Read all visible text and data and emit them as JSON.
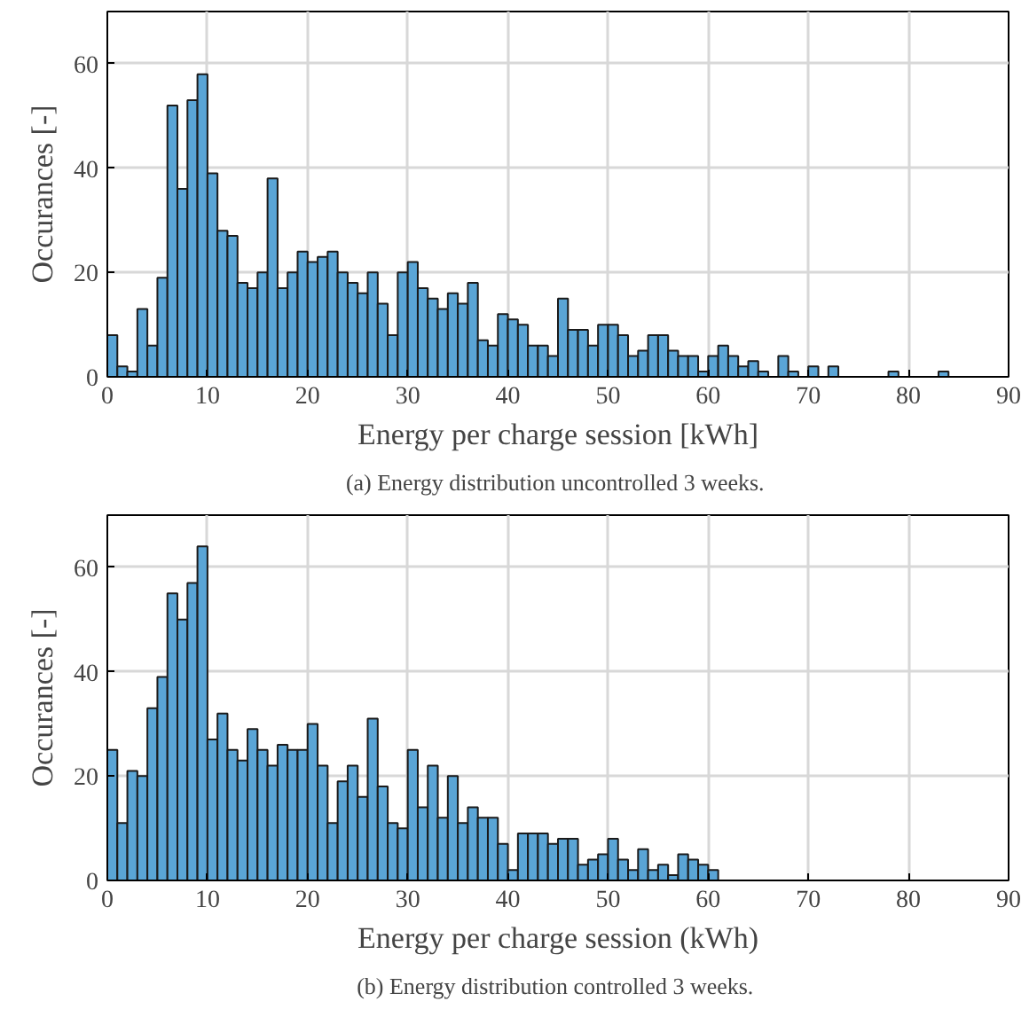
{
  "chart_data": [
    {
      "type": "histogram",
      "title": "(a)  Energy distribution uncontrolled 3 weeks.",
      "xlabel": "Energy per charge session [kWh]",
      "ylabel": "Occurances [-]",
      "color": "#5aa5d6",
      "bins": [
        0,
        1,
        2,
        3,
        4,
        5,
        6,
        7,
        8,
        9,
        10,
        11,
        12,
        13,
        14,
        15,
        16,
        17,
        18,
        19,
        20,
        21,
        22,
        23,
        24,
        25,
        26,
        27,
        28,
        29,
        30,
        31,
        32,
        33,
        34,
        35,
        36,
        37,
        38,
        39,
        40,
        41,
        42,
        43,
        44,
        45,
        46,
        47,
        48,
        49,
        50,
        51,
        52,
        53,
        54,
        55,
        56,
        57,
        58,
        59,
        60,
        61,
        62,
        63,
        64,
        65,
        66,
        67,
        68,
        69,
        70,
        71,
        72,
        73,
        74,
        75,
        76,
        77,
        78,
        79,
        80,
        81,
        82,
        83,
        84,
        85,
        86,
        87,
        88,
        89,
        90
      ],
      "values": [
        8,
        2,
        1,
        13,
        6,
        19,
        52,
        36,
        53,
        58,
        39,
        28,
        27,
        18,
        17,
        20,
        38,
        17,
        20,
        24,
        22,
        23,
        24,
        20,
        18,
        16,
        20,
        14,
        8,
        20,
        22,
        17,
        15,
        13,
        16,
        14,
        18,
        7,
        6,
        12,
        11,
        10,
        6,
        6,
        4,
        15,
        9,
        9,
        6,
        10,
        10,
        8,
        4,
        5,
        8,
        8,
        5,
        4,
        4,
        1,
        4,
        6,
        4,
        2,
        3,
        1,
        0,
        4,
        1,
        0,
        2,
        0,
        2,
        0,
        0,
        0,
        0,
        0,
        1,
        0,
        0,
        0,
        0,
        1,
        0,
        0,
        0,
        0,
        0,
        0
      ],
      "xlim": [
        0,
        90
      ],
      "ylim": [
        0,
        70
      ],
      "xticks": [
        0,
        10,
        20,
        30,
        40,
        50,
        60,
        70,
        80,
        90
      ],
      "yticks": [
        0,
        20,
        40,
        60
      ],
      "grid": true
    },
    {
      "type": "histogram",
      "title": "(b)  Energy distribution controlled 3 weeks.",
      "xlabel": "Energy per charge session (kWh)",
      "ylabel": "Occurances [-]",
      "color": "#5aa5d6",
      "bins": [
        0,
        1,
        2,
        3,
        4,
        5,
        6,
        7,
        8,
        9,
        10,
        11,
        12,
        13,
        14,
        15,
        16,
        17,
        18,
        19,
        20,
        21,
        22,
        23,
        24,
        25,
        26,
        27,
        28,
        29,
        30,
        31,
        32,
        33,
        34,
        35,
        36,
        37,
        38,
        39,
        40,
        41,
        42,
        43,
        44,
        45,
        46,
        47,
        48,
        49,
        50,
        51,
        52,
        53,
        54,
        55,
        56,
        57,
        58,
        59,
        60,
        61,
        62,
        63,
        64,
        65,
        66,
        67,
        68,
        69,
        70,
        71,
        72,
        73,
        74,
        75,
        76,
        77,
        78,
        79,
        80,
        81,
        82,
        83,
        84,
        85,
        86,
        87,
        88,
        89,
        90
      ],
      "values": [
        25,
        11,
        21,
        20,
        33,
        39,
        55,
        50,
        57,
        64,
        27,
        32,
        25,
        23,
        29,
        25,
        22,
        26,
        25,
        25,
        30,
        22,
        11,
        19,
        22,
        16,
        31,
        18,
        11,
        10,
        25,
        14,
        22,
        12,
        20,
        11,
        14,
        12,
        12,
        7,
        2,
        9,
        9,
        9,
        7,
        8,
        8,
        3,
        4,
        5,
        8,
        4,
        2,
        6,
        2,
        3,
        1,
        5,
        4,
        3,
        2,
        0,
        0,
        0,
        0,
        0,
        0,
        0,
        0,
        0,
        0,
        0,
        0,
        0,
        0,
        0,
        0,
        0,
        0,
        0,
        0,
        0,
        0,
        0,
        0,
        0,
        0,
        0,
        0,
        0
      ],
      "xlim": [
        0,
        90
      ],
      "ylim": [
        0,
        70
      ],
      "xticks": [
        0,
        10,
        20,
        30,
        40,
        50,
        60,
        70,
        80,
        90
      ],
      "yticks": [
        0,
        20,
        40,
        60
      ],
      "grid": true
    }
  ]
}
